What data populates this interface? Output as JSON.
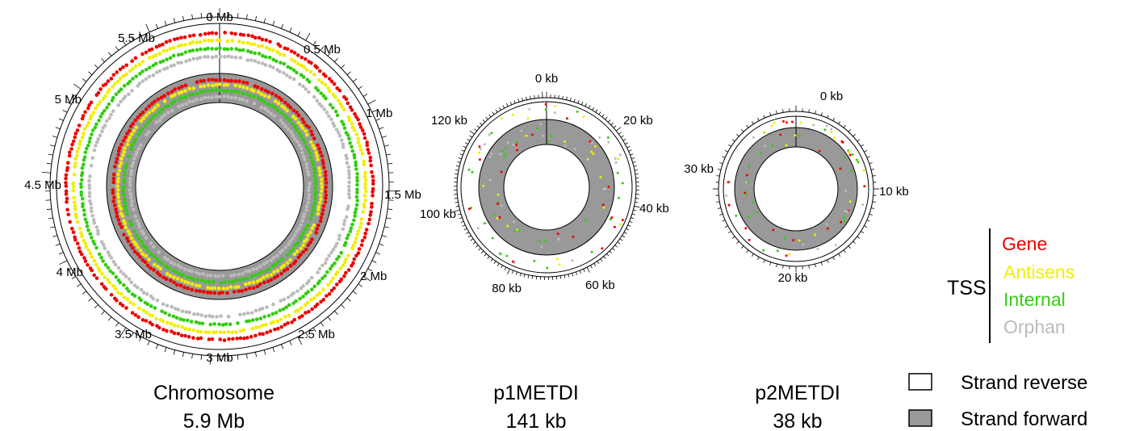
{
  "colors": {
    "gene": "#ee0000",
    "antisense": "#f2ee00",
    "internal": "#33cc11",
    "orphan": "#bbbbbb",
    "strand_forward_fill": "#999999",
    "strand_reverse_fill": "#ffffff",
    "outline": "#000000"
  },
  "circles": [
    {
      "id": "chromosome",
      "name": "Chromosome",
      "size_label": "5.9 Mb",
      "tick_labels": [
        "0 Mb",
        "0.5 Mb",
        "1 Mb",
        "1.5 Mb",
        "2 Mb",
        "2.5 Mb",
        "3 Mb",
        "3.5 Mb",
        "4 Mb",
        "4.5 Mb",
        "5 Mb",
        "5.5 Mb"
      ]
    },
    {
      "id": "p1metdi",
      "name": "p1METDI",
      "size_label": "141 kb",
      "tick_labels": [
        "0 kb",
        "20 kb",
        "40 kb",
        "60 kb",
        "80 kb",
        "100 kb",
        "120 kb"
      ]
    },
    {
      "id": "p2metdi",
      "name": "p2METDI",
      "size_label": "38 kb",
      "tick_labels": [
        "0 kb",
        "10 kb",
        "20 kb",
        "30 kb"
      ]
    }
  ],
  "legend": {
    "title": "TSS",
    "categories": [
      {
        "label": "Gene",
        "color_key": "gene"
      },
      {
        "label": "Antisens",
        "color_key": "antisense"
      },
      {
        "label": "Internal",
        "color_key": "internal"
      },
      {
        "label": "Orphan",
        "color_key": "orphan"
      }
    ],
    "strands": [
      {
        "label": "Strand reverse",
        "fill_key": "strand_reverse_fill"
      },
      {
        "label": "Strand forward",
        "fill_key": "strand_forward_fill"
      }
    ]
  }
}
